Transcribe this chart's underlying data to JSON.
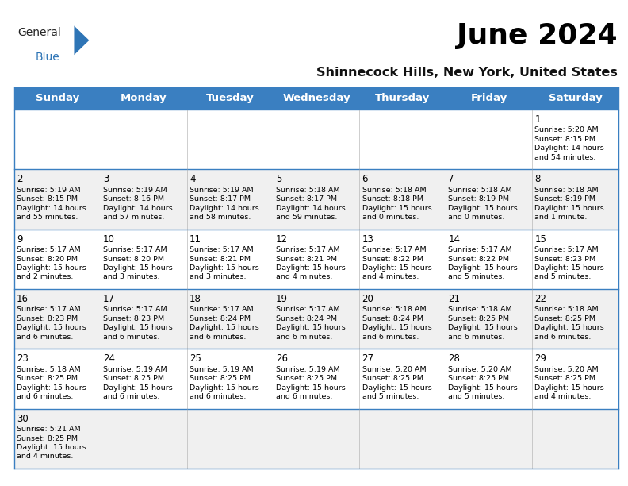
{
  "title": "June 2024",
  "subtitle": "Shinnecock Hills, New York, United States",
  "header_color": "#3A7FC1",
  "header_text_color": "#FFFFFF",
  "days_of_week": [
    "Sunday",
    "Monday",
    "Tuesday",
    "Wednesday",
    "Thursday",
    "Friday",
    "Saturday"
  ],
  "bg_color": "#FFFFFF",
  "cell_bg_even": "#F0F0F0",
  "cell_bg_odd": "#FFFFFF",
  "border_color": "#3A7FC1",
  "grid_color": "#AAAAAA",
  "title_fontsize": 26,
  "subtitle_fontsize": 11.5,
  "day_header_fontsize": 9.5,
  "cell_number_fontsize": 8.5,
  "cell_text_fontsize": 6.8,
  "logo_general_fontsize": 10,
  "logo_blue_fontsize": 10,
  "calendar_data": [
    [
      {
        "day": "",
        "info": ""
      },
      {
        "day": "",
        "info": ""
      },
      {
        "day": "",
        "info": ""
      },
      {
        "day": "",
        "info": ""
      },
      {
        "day": "",
        "info": ""
      },
      {
        "day": "",
        "info": ""
      },
      {
        "day": "1",
        "info": "Sunrise: 5:20 AM\nSunset: 8:15 PM\nDaylight: 14 hours\nand 54 minutes."
      }
    ],
    [
      {
        "day": "2",
        "info": "Sunrise: 5:19 AM\nSunset: 8:15 PM\nDaylight: 14 hours\nand 55 minutes."
      },
      {
        "day": "3",
        "info": "Sunrise: 5:19 AM\nSunset: 8:16 PM\nDaylight: 14 hours\nand 57 minutes."
      },
      {
        "day": "4",
        "info": "Sunrise: 5:19 AM\nSunset: 8:17 PM\nDaylight: 14 hours\nand 58 minutes."
      },
      {
        "day": "5",
        "info": "Sunrise: 5:18 AM\nSunset: 8:17 PM\nDaylight: 14 hours\nand 59 minutes."
      },
      {
        "day": "6",
        "info": "Sunrise: 5:18 AM\nSunset: 8:18 PM\nDaylight: 15 hours\nand 0 minutes."
      },
      {
        "day": "7",
        "info": "Sunrise: 5:18 AM\nSunset: 8:19 PM\nDaylight: 15 hours\nand 0 minutes."
      },
      {
        "day": "8",
        "info": "Sunrise: 5:18 AM\nSunset: 8:19 PM\nDaylight: 15 hours\nand 1 minute."
      }
    ],
    [
      {
        "day": "9",
        "info": "Sunrise: 5:17 AM\nSunset: 8:20 PM\nDaylight: 15 hours\nand 2 minutes."
      },
      {
        "day": "10",
        "info": "Sunrise: 5:17 AM\nSunset: 8:20 PM\nDaylight: 15 hours\nand 3 minutes."
      },
      {
        "day": "11",
        "info": "Sunrise: 5:17 AM\nSunset: 8:21 PM\nDaylight: 15 hours\nand 3 minutes."
      },
      {
        "day": "12",
        "info": "Sunrise: 5:17 AM\nSunset: 8:21 PM\nDaylight: 15 hours\nand 4 minutes."
      },
      {
        "day": "13",
        "info": "Sunrise: 5:17 AM\nSunset: 8:22 PM\nDaylight: 15 hours\nand 4 minutes."
      },
      {
        "day": "14",
        "info": "Sunrise: 5:17 AM\nSunset: 8:22 PM\nDaylight: 15 hours\nand 5 minutes."
      },
      {
        "day": "15",
        "info": "Sunrise: 5:17 AM\nSunset: 8:23 PM\nDaylight: 15 hours\nand 5 minutes."
      }
    ],
    [
      {
        "day": "16",
        "info": "Sunrise: 5:17 AM\nSunset: 8:23 PM\nDaylight: 15 hours\nand 6 minutes."
      },
      {
        "day": "17",
        "info": "Sunrise: 5:17 AM\nSunset: 8:23 PM\nDaylight: 15 hours\nand 6 minutes."
      },
      {
        "day": "18",
        "info": "Sunrise: 5:17 AM\nSunset: 8:24 PM\nDaylight: 15 hours\nand 6 minutes."
      },
      {
        "day": "19",
        "info": "Sunrise: 5:17 AM\nSunset: 8:24 PM\nDaylight: 15 hours\nand 6 minutes."
      },
      {
        "day": "20",
        "info": "Sunrise: 5:18 AM\nSunset: 8:24 PM\nDaylight: 15 hours\nand 6 minutes."
      },
      {
        "day": "21",
        "info": "Sunrise: 5:18 AM\nSunset: 8:25 PM\nDaylight: 15 hours\nand 6 minutes."
      },
      {
        "day": "22",
        "info": "Sunrise: 5:18 AM\nSunset: 8:25 PM\nDaylight: 15 hours\nand 6 minutes."
      }
    ],
    [
      {
        "day": "23",
        "info": "Sunrise: 5:18 AM\nSunset: 8:25 PM\nDaylight: 15 hours\nand 6 minutes."
      },
      {
        "day": "24",
        "info": "Sunrise: 5:19 AM\nSunset: 8:25 PM\nDaylight: 15 hours\nand 6 minutes."
      },
      {
        "day": "25",
        "info": "Sunrise: 5:19 AM\nSunset: 8:25 PM\nDaylight: 15 hours\nand 6 minutes."
      },
      {
        "day": "26",
        "info": "Sunrise: 5:19 AM\nSunset: 8:25 PM\nDaylight: 15 hours\nand 6 minutes."
      },
      {
        "day": "27",
        "info": "Sunrise: 5:20 AM\nSunset: 8:25 PM\nDaylight: 15 hours\nand 5 minutes."
      },
      {
        "day": "28",
        "info": "Sunrise: 5:20 AM\nSunset: 8:25 PM\nDaylight: 15 hours\nand 5 minutes."
      },
      {
        "day": "29",
        "info": "Sunrise: 5:20 AM\nSunset: 8:25 PM\nDaylight: 15 hours\nand 4 minutes."
      }
    ],
    [
      {
        "day": "30",
        "info": "Sunrise: 5:21 AM\nSunset: 8:25 PM\nDaylight: 15 hours\nand 4 minutes."
      },
      {
        "day": "",
        "info": ""
      },
      {
        "day": "",
        "info": ""
      },
      {
        "day": "",
        "info": ""
      },
      {
        "day": "",
        "info": ""
      },
      {
        "day": "",
        "info": ""
      },
      {
        "day": "",
        "info": ""
      }
    ]
  ]
}
